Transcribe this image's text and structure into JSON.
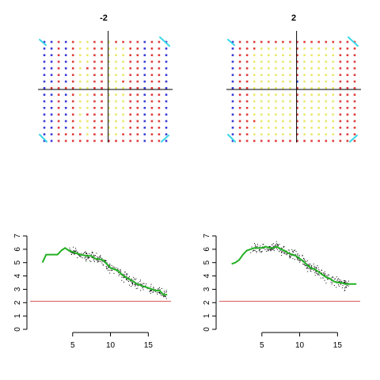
{
  "colors": {
    "blue": "#3a3ad6",
    "red": "#e03c3c",
    "yellow": "#e8e86c",
    "cyan": "#38d7e8",
    "black": "#000000",
    "green": "#22b022",
    "hline": "#d45050"
  },
  "chart_data": [
    {
      "type": "scatter",
      "title": "-2",
      "grid_nx": 18,
      "grid_ny": 16,
      "column_colors": [
        "blue",
        "blue",
        "red",
        "blue",
        "red",
        "yellow",
        "yellow",
        "red",
        "red",
        "yellow",
        "yellow",
        "yellow",
        "red",
        "red",
        "blue",
        "red",
        "red",
        "blue"
      ],
      "row_overrides": [
        {
          "row": 0,
          "colors": {
            "2": "red",
            "3": "blue",
            "4": "red",
            "7": "red",
            "10": "red",
            "11": "red"
          }
        },
        {
          "row": 4,
          "colors": {
            "6": "red",
            "8": "red"
          }
        },
        {
          "row": 6,
          "colors": {
            "10": "yellow",
            "11": "red"
          }
        },
        {
          "row": 7,
          "colors": {
            "1": "red",
            "2": "red",
            "3": "red"
          }
        },
        {
          "row": 11,
          "colors": {
            "6": "red"
          }
        },
        {
          "row": 14,
          "colors": {
            "2": "red",
            "3": "red",
            "4": "red",
            "5": "red",
            "11": "red"
          }
        },
        {
          "row": 15,
          "colors": {
            "2": "red",
            "3": "red",
            "4": "red",
            "5": "red",
            "6": "red",
            "7": "red",
            "8": "red",
            "9": "red",
            "10": "red",
            "11": "red"
          }
        }
      ],
      "vline_col": 8.9,
      "hline_row": 7.2,
      "corner_marks": [
        "top-left",
        "top-right",
        "bottom-left",
        "bottom-right"
      ]
    },
    {
      "type": "scatter",
      "title": "2",
      "grid_nx": 18,
      "grid_ny": 16,
      "column_colors": [
        "blue",
        "red",
        "red",
        "yellow",
        "yellow",
        "yellow",
        "yellow",
        "yellow",
        "yellow",
        "red",
        "yellow",
        "yellow",
        "yellow",
        "yellow",
        "yellow",
        "red",
        "red",
        "red"
      ],
      "row_overrides": [
        {
          "row": 0,
          "colors": {
            "3": "red",
            "4": "red",
            "5": "red",
            "6": "red",
            "7": "red",
            "8": "red",
            "10": "red",
            "11": "red",
            "12": "red",
            "13": "red",
            "14": "red"
          }
        },
        {
          "row": 1,
          "colors": {
            "3": "red"
          }
        },
        {
          "row": 6,
          "colors": {
            "9": "blue"
          }
        },
        {
          "row": 12,
          "colors": {
            "3": "red"
          }
        },
        {
          "row": 15,
          "colors": {
            "1": "red",
            "2": "red",
            "3": "red",
            "4": "red",
            "5": "red",
            "6": "red",
            "7": "red",
            "8": "red",
            "9": "red",
            "10": "red",
            "11": "red",
            "12": "red",
            "13": "red",
            "14": "red"
          }
        }
      ],
      "vline_col": 8.9,
      "hline_row": 7.2,
      "corner_marks": [
        "top-left",
        "top-right",
        "bottom-left",
        "bottom-right"
      ]
    },
    {
      "type": "line",
      "title": "",
      "xlabel": "",
      "ylabel": "",
      "xlim": [
        0,
        18
      ],
      "ylim": [
        0,
        7
      ],
      "xticks": [
        5,
        10,
        15
      ],
      "yticks": [
        0,
        1,
        2,
        3,
        4,
        5,
        6,
        7
      ],
      "hline": 2.1,
      "line": {
        "x": [
          1,
          1.5,
          2,
          3,
          3.5,
          4,
          4.5,
          5,
          5.5,
          6,
          7,
          7.5,
          8,
          9,
          9.5,
          10,
          11,
          11.5,
          12,
          13,
          13.5,
          14,
          15,
          15.5,
          16,
          16.5,
          17,
          17.5
        ],
        "y": [
          5.0,
          5.6,
          5.6,
          5.6,
          5.9,
          6.1,
          5.9,
          5.8,
          5.7,
          5.6,
          5.5,
          5.5,
          5.3,
          5.2,
          4.9,
          4.6,
          4.4,
          4.1,
          3.9,
          3.6,
          3.4,
          3.3,
          3.1,
          3.0,
          2.9,
          2.9,
          2.6,
          2.6
        ]
      },
      "scatter_seed": 7,
      "scatter_noise": 0.18,
      "scatter_count": 320,
      "scatter_xrange": [
        4.5,
        17.5
      ]
    },
    {
      "type": "line",
      "title": "",
      "xlabel": "",
      "ylabel": "",
      "xlim": [
        0,
        18
      ],
      "ylim": [
        0,
        7
      ],
      "xticks": [
        5,
        10,
        15
      ],
      "yticks": [
        0,
        1,
        2,
        3,
        4,
        5,
        6,
        7
      ],
      "hline": 2.1,
      "line": {
        "x": [
          1,
          1.5,
          2,
          2.5,
          3,
          3.5,
          4,
          4.5,
          5,
          5.5,
          6,
          6.5,
          7,
          7.5,
          8,
          8.5,
          9,
          9.5,
          10,
          10.5,
          11,
          11.5,
          12,
          12.5,
          13,
          13.5,
          14,
          14.5,
          15,
          15.5,
          16,
          16.5,
          17,
          17.5
        ],
        "y": [
          4.9,
          5.0,
          5.2,
          5.6,
          5.9,
          6.0,
          6.1,
          6.1,
          6.1,
          6.2,
          6.1,
          6.1,
          6.2,
          6.0,
          5.9,
          5.7,
          5.6,
          5.5,
          5.3,
          5.1,
          4.8,
          4.6,
          4.5,
          4.3,
          4.1,
          3.9,
          3.8,
          3.6,
          3.5,
          3.5,
          3.4,
          3.4,
          3.4,
          3.4
        ]
      },
      "scatter_seed": 13,
      "scatter_noise": 0.18,
      "scatter_count": 320,
      "scatter_xrange": [
        3.5,
        16.5
      ]
    }
  ]
}
